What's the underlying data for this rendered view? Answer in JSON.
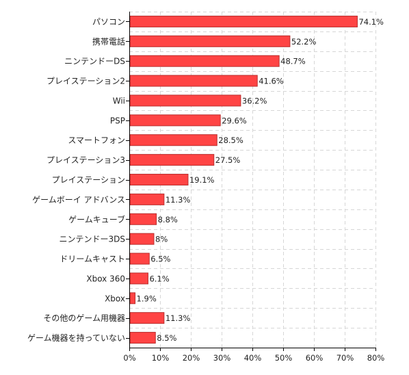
{
  "chart_data": {
    "type": "bar",
    "orientation": "horizontal",
    "title": "",
    "xlabel": "",
    "ylabel": "",
    "categories": [
      "パソコン",
      "携帯電話",
      "ニンテンドーDS",
      "プレイステーション2",
      "Wii",
      "PSP",
      "スマートフォン",
      "プレイステーション3",
      "プレイステーション",
      "ゲームボーイ アドバンス",
      "ゲームキューブ",
      "ニンテンドー3DS",
      "ドリームキャスト",
      "Xbox 360",
      "Xbox",
      "その他のゲーム用機器",
      "ゲーム機器を持っていない"
    ],
    "values": [
      74.1,
      52.2,
      48.7,
      41.6,
      36.2,
      29.6,
      28.5,
      27.5,
      19.1,
      11.3,
      8.8,
      8,
      6.5,
      6.1,
      1.9,
      11.3,
      8.5
    ],
    "value_labels": [
      "74.1%",
      "52.2%",
      "48.7%",
      "41.6%",
      "36.2%",
      "29.6%",
      "28.5%",
      "27.5%",
      "19.1%",
      "11.3%",
      "8.8%",
      "8%",
      "6.5%",
      "6.1%",
      "1.9%",
      "11.3%",
      "8.5%"
    ],
    "xlim": [
      0,
      80
    ],
    "x_ticks": [
      0,
      10,
      20,
      30,
      40,
      50,
      60,
      70,
      80
    ],
    "x_tick_labels": [
      "0%",
      "10%",
      "20%",
      "30%",
      "40%",
      "50%",
      "60%",
      "70%",
      "80%"
    ],
    "grid": true,
    "legend": "none",
    "bar_color": "#ff4444",
    "bar_edge_color": "#b82e2e"
  }
}
